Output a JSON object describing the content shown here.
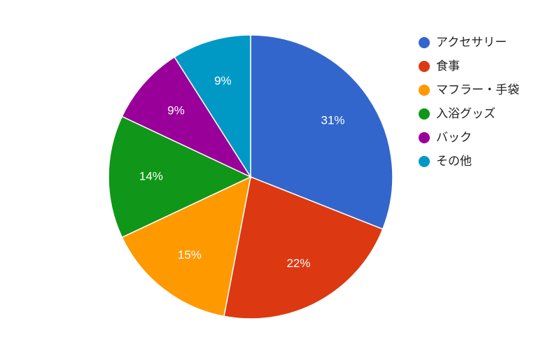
{
  "chart_data": {
    "type": "pie",
    "categories": [
      "アクセサリー",
      "食事",
      "マフラー・手袋",
      "入浴グッズ",
      "バック",
      "その他"
    ],
    "values": [
      31,
      22,
      15,
      14,
      9,
      9
    ],
    "value_labels": [
      "31%",
      "22%",
      "15%",
      "14%",
      "9%",
      "9%"
    ],
    "colors": [
      "#3366cc",
      "#dc3912",
      "#ff9900",
      "#109618",
      "#990099",
      "#0099c6"
    ],
    "legend": "right"
  }
}
